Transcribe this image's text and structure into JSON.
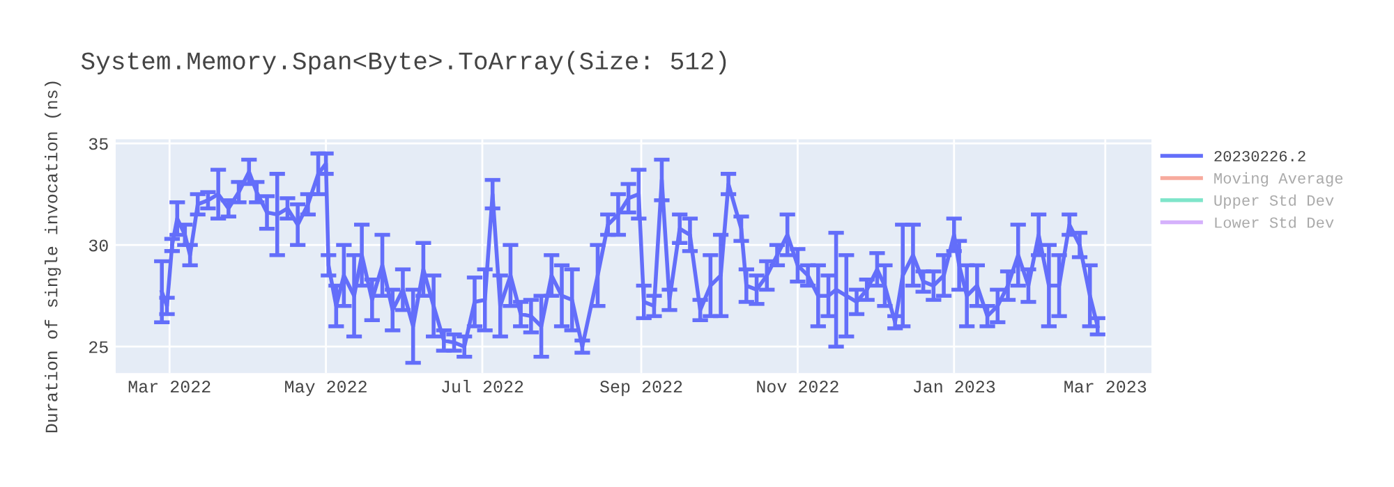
{
  "chart_data": {
    "type": "line",
    "title": "System.Memory.Span<Byte>.ToArray(Size: 512)",
    "ylabel": "Duration of single invocation (ns)",
    "x": [
      "2022-02-26",
      "2022-02-28",
      "2022-03-02",
      "2022-03-04",
      "2022-03-07",
      "2022-03-09",
      "2022-03-12",
      "2022-03-16",
      "2022-03-20",
      "2022-03-24",
      "2022-03-28",
      "2022-04-01",
      "2022-04-04",
      "2022-04-08",
      "2022-04-12",
      "2022-04-16",
      "2022-04-20",
      "2022-04-24",
      "2022-04-28",
      "2022-05-01",
      "2022-05-02",
      "2022-05-05",
      "2022-05-08",
      "2022-05-12",
      "2022-05-15",
      "2022-05-19",
      "2022-05-23",
      "2022-05-27",
      "2022-05-31",
      "2022-06-04",
      "2022-06-08",
      "2022-06-12",
      "2022-06-16",
      "2022-06-20",
      "2022-06-24",
      "2022-06-28",
      "2022-07-02",
      "2022-07-05",
      "2022-07-08",
      "2022-07-12",
      "2022-07-16",
      "2022-07-20",
      "2022-07-24",
      "2022-07-28",
      "2022-08-01",
      "2022-08-05",
      "2022-08-09",
      "2022-08-15",
      "2022-08-19",
      "2022-08-23",
      "2022-08-27",
      "2022-08-31",
      "2022-09-02",
      "2022-09-06",
      "2022-09-09",
      "2022-09-12",
      "2022-09-16",
      "2022-09-20",
      "2022-09-24",
      "2022-09-28",
      "2022-10-02",
      "2022-10-05",
      "2022-10-10",
      "2022-10-12",
      "2022-10-16",
      "2022-10-20",
      "2022-10-24",
      "2022-10-28",
      "2022-11-01",
      "2022-11-05",
      "2022-11-09",
      "2022-11-13",
      "2022-11-16",
      "2022-11-20",
      "2022-11-24",
      "2022-11-28",
      "2022-12-02",
      "2022-12-05",
      "2022-12-09",
      "2022-12-12",
      "2022-12-16",
      "2022-12-20",
      "2022-12-24",
      "2022-12-28",
      "2023-01-01",
      "2023-01-03",
      "2023-01-06",
      "2023-01-10",
      "2023-01-14",
      "2023-01-18",
      "2023-01-22",
      "2023-01-26",
      "2023-01-30",
      "2023-02-03",
      "2023-02-07",
      "2023-02-11",
      "2023-02-15",
      "2023-02-19",
      "2023-02-23",
      "2023-02-26"
    ],
    "series": [
      {
        "name": "20230226.2",
        "color": "#636efa",
        "values": [
          27.7,
          27.0,
          30.0,
          31.3,
          30.5,
          29.5,
          32.0,
          32.2,
          32.5,
          31.8,
          32.6,
          33.6,
          32.6,
          31.6,
          31.5,
          31.8,
          31.0,
          32.0,
          33.5,
          34.0,
          29.0,
          27.0,
          28.5,
          27.5,
          29.5,
          27.3,
          29.0,
          26.8,
          27.8,
          26.0,
          28.8,
          27.0,
          25.3,
          25.2,
          25.0,
          27.2,
          27.3,
          32.5,
          27.0,
          28.5,
          26.6,
          26.5,
          26.0,
          28.5,
          27.5,
          27.3,
          25.0,
          28.5,
          31.0,
          31.5,
          32.3,
          32.5,
          27.2,
          27.0,
          33.2,
          27.3,
          30.8,
          30.5,
          26.8,
          28.0,
          28.5,
          33.0,
          30.8,
          28.0,
          27.8,
          28.5,
          29.5,
          30.5,
          29.0,
          28.5,
          27.5,
          27.5,
          27.8,
          27.5,
          27.2,
          27.8,
          28.8,
          28.0,
          26.2,
          28.5,
          29.5,
          28.2,
          28.0,
          28.5,
          30.5,
          29.0,
          27.5,
          28.0,
          26.5,
          27.0,
          28.0,
          29.5,
          28.0,
          30.5,
          28.0,
          28.0,
          31.0,
          30.0,
          27.5,
          26.0
        ],
        "errors": [
          1.5,
          0.4,
          0.3,
          0.8,
          0.5,
          0.5,
          0.5,
          0.4,
          1.2,
          0.4,
          0.5,
          0.6,
          0.5,
          0.8,
          2.0,
          0.5,
          1.0,
          0.5,
          1.0,
          0.5,
          0.5,
          1.0,
          1.5,
          2.0,
          1.5,
          1.0,
          1.5,
          1.0,
          1.0,
          1.8,
          1.3,
          1.5,
          0.5,
          0.4,
          0.5,
          1.2,
          1.5,
          0.7,
          1.5,
          1.5,
          0.6,
          0.8,
          1.5,
          1.0,
          1.5,
          1.5,
          0.3,
          1.5,
          0.5,
          1.0,
          0.7,
          1.2,
          0.8,
          0.5,
          1.0,
          0.5,
          0.7,
          0.8,
          0.5,
          1.5,
          2.0,
          0.5,
          0.6,
          0.8,
          0.7,
          0.7,
          0.5,
          1.0,
          0.8,
          0.5,
          1.5,
          1.0,
          2.8,
          2.0,
          0.6,
          0.5,
          0.8,
          1.0,
          0.3,
          2.5,
          1.5,
          0.5,
          0.7,
          1.0,
          0.8,
          1.2,
          1.5,
          1.0,
          0.5,
          0.8,
          0.7,
          1.5,
          0.8,
          1.0,
          2.0,
          1.5,
          0.5,
          0.6,
          1.5,
          0.4
        ]
      },
      {
        "name": "Moving Average",
        "color": "#ef553b",
        "values": [
          null,
          null,
          null,
          null,
          null,
          null,
          null,
          null,
          null,
          null,
          null,
          null,
          null,
          null,
          null,
          null,
          null,
          null,
          null,
          null,
          null,
          null,
          null,
          null,
          null,
          null,
          null,
          null,
          null,
          null,
          null,
          null,
          null,
          null,
          null,
          null,
          null,
          null,
          null,
          null,
          null,
          null,
          null,
          null,
          null,
          null,
          null,
          null,
          null,
          null,
          null,
          null,
          null,
          null,
          null,
          null,
          null,
          null,
          null,
          null,
          null,
          null,
          null,
          null,
          null,
          null,
          null,
          null,
          null,
          null,
          null,
          null,
          null,
          null,
          null,
          null,
          null,
          null,
          null,
          null,
          null,
          null,
          null,
          null,
          null,
          null,
          null,
          null,
          null,
          null,
          null,
          null,
          null,
          null,
          null,
          null,
          null,
          null,
          null,
          null
        ]
      },
      {
        "name": "Upper Std Dev",
        "color": "#00cc96",
        "values": [
          null,
          null,
          null,
          null,
          null,
          null,
          null,
          null,
          null,
          null,
          null,
          null,
          null,
          null,
          null,
          null,
          null,
          null,
          null,
          null,
          null,
          null,
          null,
          null,
          null,
          null,
          null,
          null,
          null,
          null,
          null,
          null,
          null,
          null,
          null,
          null,
          null,
          null,
          null,
          null,
          null,
          null,
          null,
          null,
          null,
          null,
          null,
          null,
          null,
          null,
          null,
          null,
          null,
          null,
          null,
          null,
          null,
          null,
          null,
          null,
          null,
          null,
          null,
          null,
          null,
          null,
          null,
          null,
          null,
          null,
          null,
          null,
          null,
          null,
          null,
          null,
          null,
          null,
          null,
          null,
          null,
          null,
          null,
          null,
          null,
          null,
          null,
          null,
          null,
          null,
          null,
          null,
          null,
          null,
          null,
          null,
          null,
          null,
          null,
          null
        ]
      },
      {
        "name": "Lower Std Dev",
        "color": "#ab63fa",
        "values": [
          null,
          null,
          null,
          null,
          null,
          null,
          null,
          null,
          null,
          null,
          null,
          null,
          null,
          null,
          null,
          null,
          null,
          null,
          null,
          null,
          null,
          null,
          null,
          null,
          null,
          null,
          null,
          null,
          null,
          null,
          null,
          null,
          null,
          null,
          null,
          null,
          null,
          null,
          null,
          null,
          null,
          null,
          null,
          null,
          null,
          null,
          null,
          null,
          null,
          null,
          null,
          null,
          null,
          null,
          null,
          null,
          null,
          null,
          null,
          null,
          null,
          null,
          null,
          null,
          null,
          null,
          null,
          null,
          null,
          null,
          null,
          null,
          null,
          null,
          null,
          null,
          null,
          null,
          null,
          null,
          null,
          null,
          null,
          null,
          null,
          null,
          null,
          null,
          null,
          null,
          null,
          null,
          null,
          null,
          null,
          null,
          null,
          null,
          null,
          null
        ]
      }
    ],
    "xlim": [
      "2022-02-08",
      "2023-03-19"
    ],
    "xticks": [
      {
        "value": "2022-03-01",
        "label": "Mar 2022"
      },
      {
        "value": "2022-05-01",
        "label": "May 2022"
      },
      {
        "value": "2022-07-01",
        "label": "Jul 2022"
      },
      {
        "value": "2022-09-01",
        "label": "Sep 2022"
      },
      {
        "value": "2022-11-01",
        "label": "Nov 2022"
      },
      {
        "value": "2023-01-01",
        "label": "Jan 2023"
      },
      {
        "value": "2023-03-01",
        "label": "Mar 2023"
      }
    ],
    "ylim": [
      23.7,
      35.2
    ],
    "yticks": [
      25,
      30,
      35
    ],
    "grid": true,
    "legend": "right"
  }
}
